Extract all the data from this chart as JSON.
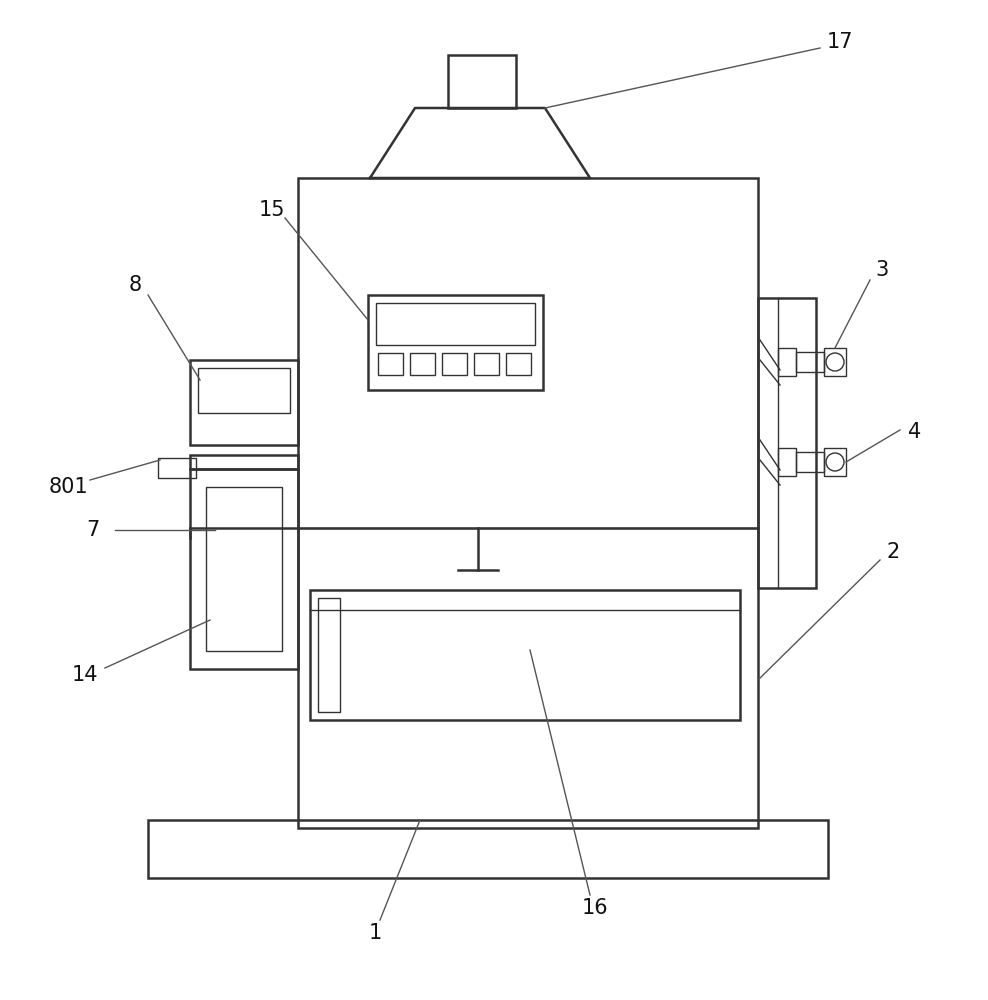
{
  "bg_color": "#ffffff",
  "lc": "#333333",
  "lw": 1.8,
  "tlw": 1.0,
  "ann_lc": "#555555",
  "ann_lw": 1.0,
  "fs": 15,
  "lbl_color": "#111111"
}
